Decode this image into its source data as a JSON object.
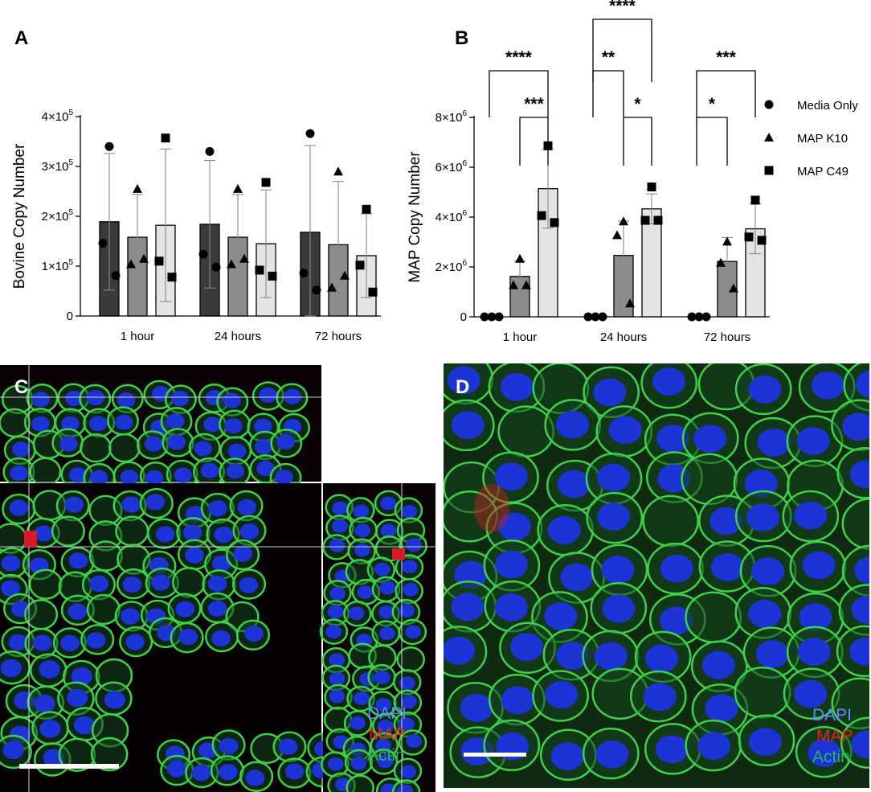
{
  "panels": {
    "A": {
      "letter": "A",
      "chart_data": {
        "type": "bar",
        "categories": [
          "1 hour",
          "24 hours",
          "72 hours"
        ],
        "ylabel": "Bovine Copy Number",
        "ylim": [
          0,
          400000
        ],
        "y_ticks": [
          {
            "value": 0,
            "label": "0"
          },
          {
            "value": 100000,
            "label": "1×10",
            "exp": "5"
          },
          {
            "value": 200000,
            "label": "2×10",
            "exp": "5"
          },
          {
            "value": 300000,
            "label": "3×10",
            "exp": "5"
          },
          {
            "value": 400000,
            "label": "4×10",
            "exp": "5"
          }
        ],
        "series": [
          {
            "name": "Media Only",
            "color": "#3a3a3a",
            "marker": "circle",
            "values": [
              189000,
              184000,
              168000
            ],
            "errors": [
              137000,
              128000,
              174000
            ],
            "points": [
              [
                340000,
                146000,
                81000
              ],
              [
                330000,
                124000,
                98000
              ],
              [
                366000,
                86000,
                52000
              ]
            ]
          },
          {
            "name": "MAP K10",
            "color": "#8c8c8c",
            "marker": "triangle",
            "values": [
              158000,
              158000,
              143000
            ],
            "errors": [
              86000,
              86000,
              127000
            ],
            "points": [
              [
                255000,
                104000,
                115000
              ],
              [
                255000,
                104000,
                115000
              ],
              [
                290000,
                57000,
                81000
              ]
            ]
          },
          {
            "name": "MAP C49",
            "color": "#e4e4e4",
            "marker": "square",
            "values": [
              182000,
              145000,
              121000
            ],
            "errors": [
              153000,
              108000,
              84000
            ],
            "points": [
              [
                357000,
                110000,
                78000
              ],
              [
                268000,
                92000,
                80000
              ],
              [
                214000,
                102000,
                48000
              ]
            ]
          }
        ]
      }
    },
    "B": {
      "letter": "B",
      "chart_data": {
        "type": "bar",
        "categories": [
          "1 hour",
          "24 hours",
          "72 hours"
        ],
        "ylabel": "MAP Copy Number",
        "ylim": [
          0,
          8000000
        ],
        "y_ticks": [
          {
            "value": 0,
            "label": "0"
          },
          {
            "value": 2000000,
            "label": "2×10",
            "exp": "6"
          },
          {
            "value": 4000000,
            "label": "4×10",
            "exp": "6"
          },
          {
            "value": 6000000,
            "label": "6×10",
            "exp": "6"
          },
          {
            "value": 8000000,
            "label": "8×10",
            "exp": "6"
          }
        ],
        "legend_position": "right",
        "series": [
          {
            "name": "Media Only",
            "color": "#3a3a3a",
            "marker": "circle",
            "values": [
              0,
              0,
              0
            ],
            "errors": [
              0,
              0,
              0
            ],
            "points": [
              [
                0,
                0,
                0
              ],
              [
                0,
                0,
                0
              ],
              [
                0,
                0,
                0
              ]
            ]
          },
          {
            "name": "MAP K10",
            "color": "#8c8c8c",
            "marker": "triangle",
            "values": [
              1620000,
              2460000,
              2220000
            ],
            "errors": [
              620000,
              1380000,
              960000
            ],
            "points": [
              [
                2330000,
                1270000,
                1270000
              ],
              [
                3830000,
                3280000,
                540000
              ],
              [
                3020000,
                2170000,
                1140000
              ]
            ]
          },
          {
            "name": "MAP C49",
            "color": "#e4e4e4",
            "marker": "square",
            "values": [
              5140000,
              4330000,
              3530000
            ],
            "errors": [
              1580000,
              600000,
              1000000
            ],
            "points": [
              [
                6860000,
                4060000,
                3780000
              ],
              [
                5210000,
                3870000,
                3870000
              ],
              [
                4680000,
                3200000,
                3070000
              ]
            ]
          }
        ],
        "significance": [
          {
            "group": 0,
            "from": 0,
            "to": 2,
            "label": "****",
            "level": 2
          },
          {
            "group": 0,
            "from": 1,
            "to": 2,
            "label": "***",
            "level": 1
          },
          {
            "group": 1,
            "from": 0,
            "to": 2,
            "label": "****",
            "level": 3
          },
          {
            "group": 1,
            "from": 0,
            "to": 1,
            "label": "**",
            "level": 2
          },
          {
            "group": 1,
            "from": 1,
            "to": 2,
            "label": "*",
            "level": 1
          },
          {
            "group": 2,
            "from": 0,
            "to": 2,
            "label": "***",
            "level": 2
          },
          {
            "group": 2,
            "from": 0,
            "to": 1,
            "label": "*",
            "level": 1
          }
        ]
      }
    },
    "C": {
      "letter": "C",
      "labels": {
        "dapi": "DAPI",
        "map": "MAP",
        "actin": "Actin"
      },
      "colors": {
        "dapi": "#5b8fff",
        "map": "#e8231e",
        "actin": "#27b35f"
      }
    },
    "D": {
      "letter": "D",
      "labels": {
        "dapi": "DAPI",
        "map": "MAP",
        "actin": "Actin"
      },
      "colors": {
        "dapi": "#5b8fff",
        "map": "#e8231e",
        "actin": "#27b35f"
      }
    }
  }
}
